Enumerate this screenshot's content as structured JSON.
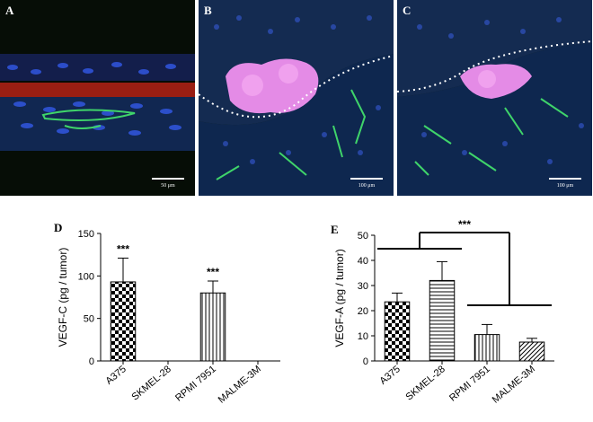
{
  "panels": [
    {
      "label": "A",
      "scale": "50 μm"
    },
    {
      "label": "B",
      "scale": "100 μm"
    },
    {
      "label": "C",
      "scale": "100 μm"
    }
  ],
  "colors": {
    "tissue_bg": "#0a1408",
    "nuclei": "#2c4fd6",
    "vessels": "#3fd46a",
    "red_layer": "#e0281c",
    "tumor": "#e48be6"
  },
  "chart_data": [
    {
      "panel_label": "D",
      "type": "bar",
      "categories": [
        "A375",
        "SKMEL-28",
        "RPMI 7951",
        "MALME-3M"
      ],
      "values": [
        93,
        0,
        80,
        0
      ],
      "errors": [
        28,
        0,
        14,
        0
      ],
      "significance": [
        "***",
        "",
        "***",
        ""
      ],
      "ylabel": "VEGF-C (pg / tumor)",
      "ylim": [
        0,
        150
      ],
      "yticks": [
        0,
        50,
        100,
        150
      ],
      "patterns": [
        "checker",
        "horizontal",
        "vertical",
        "diagonal"
      ],
      "grid": false
    },
    {
      "panel_label": "E",
      "type": "bar",
      "categories": [
        "A375",
        "SKMEL-28",
        "RPMI 7951",
        "MALME-3M"
      ],
      "values": [
        23.5,
        32,
        10.5,
        7.5
      ],
      "errors": [
        3.5,
        7.5,
        4,
        1.5
      ],
      "significance": [
        "",
        "",
        "",
        ""
      ],
      "group_comparison": "***",
      "ylabel": "VEGF-A (pg / tumor)",
      "ylim": [
        0,
        50
      ],
      "yticks": [
        0,
        10,
        20,
        30,
        40,
        50
      ],
      "patterns": [
        "checker",
        "horizontal",
        "vertical",
        "diagonal"
      ],
      "grid": false
    }
  ]
}
